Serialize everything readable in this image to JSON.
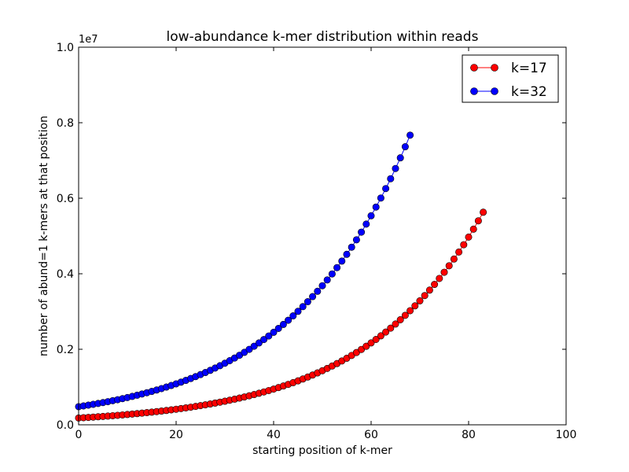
{
  "chart_data": {
    "type": "line",
    "title": "low-abundance k-mer distribution within reads",
    "xlabel": "starting position of k-mer",
    "ylabel": "number of abund=1 k-mers at that position",
    "y_offset_label": "1e7",
    "xlim": [
      0,
      100
    ],
    "ylim": [
      0,
      1.0
    ],
    "x_ticks": [
      "0",
      "20",
      "40",
      "60",
      "80",
      "100"
    ],
    "y_ticks": [
      "0.0",
      "0.2",
      "0.4",
      "0.6",
      "0.8",
      "1.0"
    ],
    "grid": false,
    "legend_position": "top-right",
    "series": [
      {
        "name": "k=17",
        "color": "#ff0000",
        "marker": "circle",
        "x_start": 0,
        "x_end": 83,
        "y_start": 0.018,
        "y_end": 0.563
      },
      {
        "name": "k=32",
        "color": "#0000ff",
        "marker": "circle",
        "x_start": 0,
        "x_end": 68,
        "y_start": 0.048,
        "y_end": 0.767
      }
    ]
  }
}
